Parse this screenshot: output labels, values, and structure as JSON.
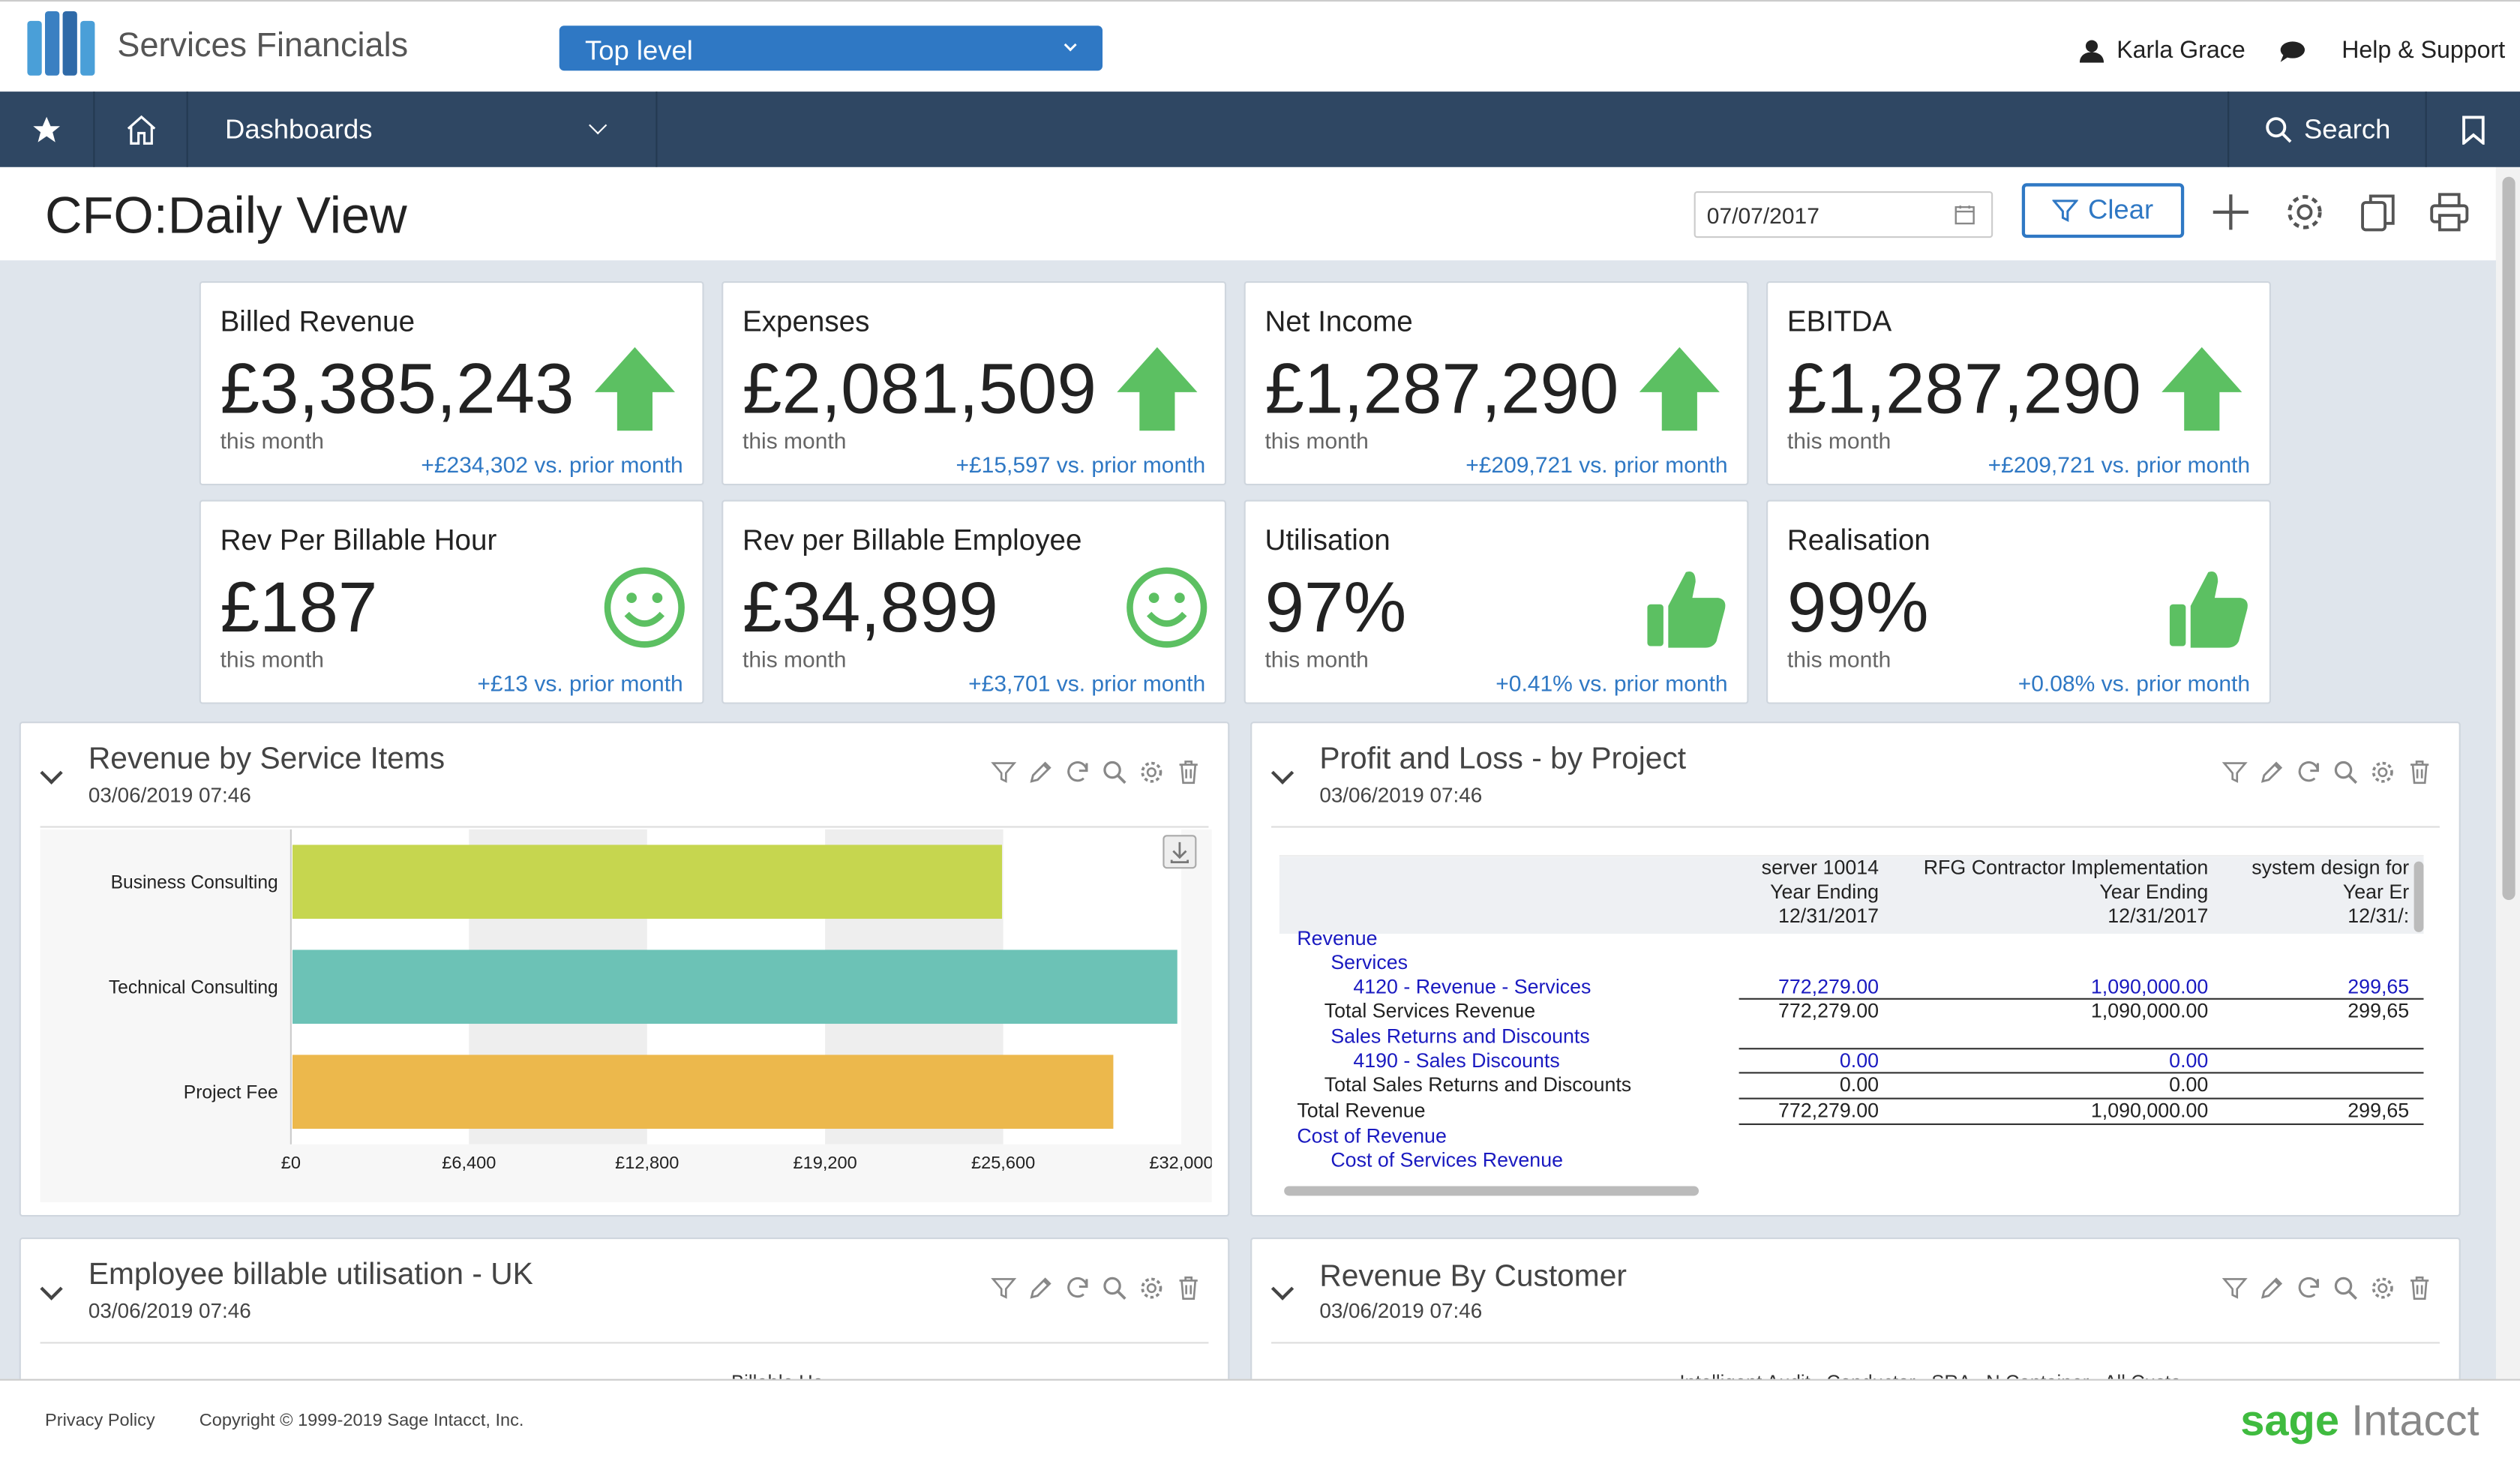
{
  "app": {
    "title": "Services Financials",
    "entity": "Top level",
    "user": "Karla Grace",
    "help": "Help & Support"
  },
  "nav": {
    "dashboards": "Dashboards",
    "search": "Search"
  },
  "page": {
    "title": "CFO:Daily View",
    "date": "07/07/2017",
    "clear": "Clear"
  },
  "kpis": [
    {
      "label": "Billed Revenue",
      "value": "£3,385,243",
      "sub": "this month",
      "cmp": "+£234,302 vs. prior month",
      "icon": "arrow-up-icon"
    },
    {
      "label": "Expenses",
      "value": "£2,081,509",
      "sub": "this month",
      "cmp": "+£15,597 vs. prior month",
      "icon": "arrow-up-icon"
    },
    {
      "label": "Net Income",
      "value": "£1,287,290",
      "sub": "this month",
      "cmp": "+£209,721 vs. prior month",
      "icon": "arrow-up-icon"
    },
    {
      "label": "EBITDA",
      "value": "£1,287,290",
      "sub": "this month",
      "cmp": "+£209,721 vs. prior month",
      "icon": "arrow-up-icon"
    },
    {
      "label": "Rev Per Billable Hour",
      "value": "£187",
      "sub": "this month",
      "cmp": "+£13 vs. prior month",
      "icon": "smiley-icon"
    },
    {
      "label": "Rev per Billable Employee",
      "value": "£34,899",
      "sub": "this month",
      "cmp": "+£3,701 vs. prior month",
      "icon": "smiley-icon"
    },
    {
      "label": "Utilisation",
      "value": "97%",
      "sub": "this month",
      "cmp": "+0.41% vs. prior month",
      "icon": "thumbs-up-icon"
    },
    {
      "label": "Realisation",
      "value": "99%",
      "sub": "this month",
      "cmp": "+0.08% vs. prior month",
      "icon": "thumbs-up-icon"
    }
  ],
  "panels": {
    "revenue_items": {
      "title": "Revenue by Service Items",
      "date": "03/06/2019 07:46"
    },
    "pnl": {
      "title": "Profit and Loss - by Project",
      "date": "03/06/2019 07:46"
    },
    "utilisation": {
      "title": "Employee billable utilisation - UK",
      "date": "03/06/2019 07:46",
      "peek": "Billable Ho"
    },
    "customer": {
      "title": "Revenue By Customer",
      "date": "03/06/2019 07:46",
      "peek": "Intelligent Audit   Conductor   SRA   N Container   All Custo"
    }
  },
  "chart_data": {
    "type": "bar",
    "orientation": "horizontal",
    "title": "Revenue by Service Items",
    "categories": [
      "Business Consulting",
      "Technical Consulting",
      "Project Fee"
    ],
    "values": [
      25500,
      31800,
      29500
    ],
    "colors": [
      "#c6d64f",
      "#6cc2b6",
      "#ecb84c"
    ],
    "xlim": [
      0,
      32000
    ],
    "ticks": [
      "£0",
      "£6,400",
      "£12,800",
      "£19,200",
      "£25,600",
      "£32,000"
    ]
  },
  "pnl": {
    "columns": [
      {
        "l1": "server 10014",
        "l2": "Year Ending",
        "l3": "12/31/2017"
      },
      {
        "l1": "RFG Contractor Implementation",
        "l2": "Year Ending",
        "l3": "12/31/2017"
      },
      {
        "l1": "system design for",
        "l2": "Year Er",
        "l3": "12/31/:"
      }
    ],
    "rows": [
      {
        "label": "Revenue",
        "style": "blue",
        "indent": 0,
        "vals": [
          "",
          "",
          ""
        ]
      },
      {
        "label": "Services",
        "style": "blue",
        "indent": 1,
        "vals": [
          "",
          "",
          ""
        ]
      },
      {
        "label": "4120 - Revenue - Services",
        "style": "blue",
        "indent": 2,
        "vals": [
          "772,279.00",
          "1,090,000.00",
          "299,65"
        ]
      },
      {
        "label": "Total Services Revenue",
        "style": "black",
        "indent": 1,
        "vals": [
          "772,279.00",
          "1,090,000.00",
          "299,65"
        ]
      },
      {
        "label": "Sales Returns and Discounts",
        "style": "blue",
        "indent": 1,
        "vals": [
          "",
          "",
          ""
        ]
      },
      {
        "label": "4190 - Sales Discounts",
        "style": "blue",
        "indent": 2,
        "vals": [
          "0.00",
          "0.00",
          ""
        ]
      },
      {
        "label": "Total Sales Returns and Discounts",
        "style": "black",
        "indent": 1,
        "vals": [
          "0.00",
          "0.00",
          ""
        ]
      },
      {
        "label": "Total Revenue",
        "style": "black",
        "indent": 0,
        "vals": [
          "772,279.00",
          "1,090,000.00",
          "299,65"
        ]
      },
      {
        "label": "Cost of Revenue",
        "style": "blue",
        "indent": 0,
        "vals": [
          "",
          "",
          ""
        ]
      },
      {
        "label": "Cost of Services Revenue",
        "style": "blue",
        "indent": 1,
        "vals": [
          "",
          "",
          ""
        ]
      }
    ]
  },
  "footer": {
    "privacy": "Privacy Policy",
    "copyright": "Copyright © 1999-2019 Sage Intacct, Inc.",
    "brand1": "sage",
    "brand2": " Intacct"
  },
  "colors": {
    "nav": "#2f4763",
    "accent": "#2f78c4",
    "green": "#5cc062"
  }
}
